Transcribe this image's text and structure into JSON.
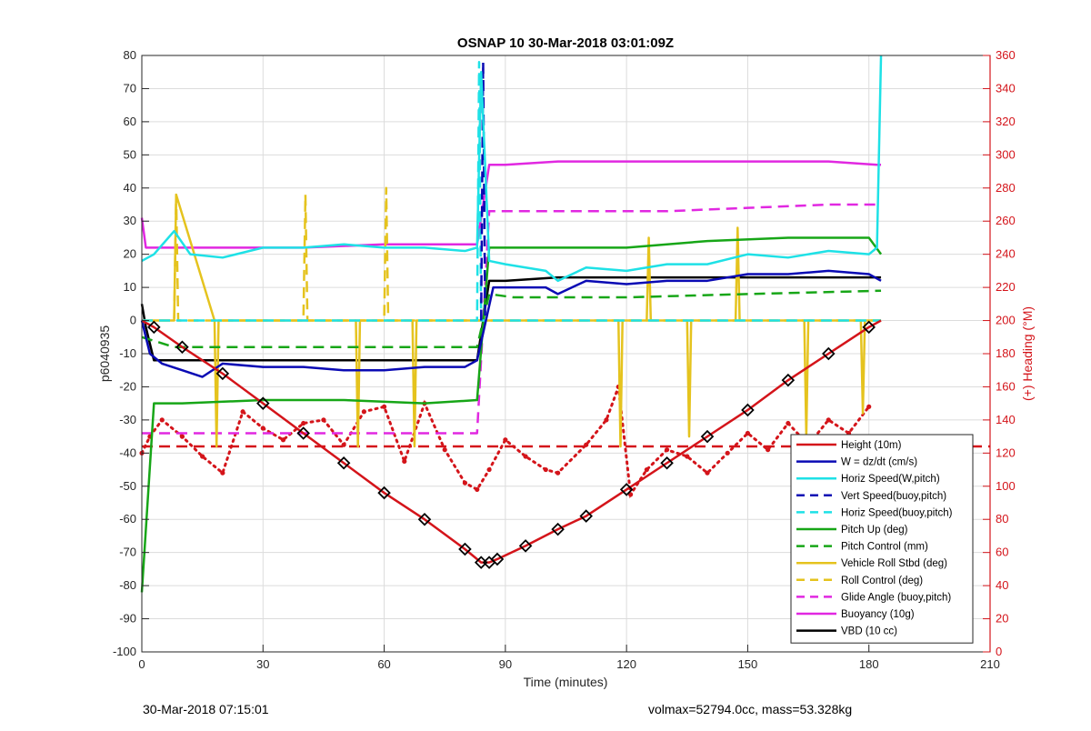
{
  "chart_data": {
    "type": "line",
    "title": "OSNAP 10 30-Mar-2018 03:01:09Z",
    "xlabel": "Time (minutes)",
    "ylabel_left": "p6040935",
    "ylabel_right": "(+) Heading (°M)",
    "xlim": [
      0,
      210
    ],
    "ylim_left": [
      -100,
      80
    ],
    "ylim_right": [
      0,
      360
    ],
    "x_ticks": [
      0,
      30,
      60,
      90,
      120,
      150,
      180,
      210
    ],
    "y_ticks_left": [
      -100,
      -90,
      -80,
      -70,
      -60,
      -50,
      -40,
      -30,
      -20,
      -10,
      0,
      10,
      20,
      30,
      40,
      50,
      60,
      70,
      80
    ],
    "y_ticks_right": [
      0,
      20,
      40,
      60,
      80,
      100,
      120,
      140,
      160,
      180,
      200,
      220,
      240,
      260,
      280,
      300,
      320,
      340,
      360
    ],
    "grid": true,
    "legend_position": "bottom-right",
    "right_axis_color": "#d4141a",
    "series": [
      {
        "name": "Height (10m)",
        "color": "#d4141a",
        "style": "solid",
        "x": [
          0,
          3,
          10,
          20,
          30,
          40,
          50,
          60,
          70,
          80,
          84,
          86,
          88,
          95,
          103,
          110,
          120,
          130,
          140,
          150,
          160,
          170,
          180,
          183
        ],
        "y": [
          0,
          -2,
          -8,
          -16,
          -25,
          -34,
          -43,
          -52,
          -60,
          -69,
          -73,
          -73,
          -72,
          -68,
          -63,
          -59,
          -51,
          -43,
          -35,
          -27,
          -18,
          -10,
          -2,
          0
        ]
      },
      {
        "name": "W = dz/dt (cm/s)",
        "color": "#0a0ab4",
        "style": "solid",
        "x": [
          0,
          2,
          5,
          10,
          15,
          20,
          30,
          40,
          50,
          60,
          70,
          80,
          83,
          87,
          90,
          100,
          103,
          110,
          120,
          130,
          140,
          150,
          160,
          170,
          180,
          183
        ],
        "y": [
          0,
          -10,
          -13,
          -15,
          -17,
          -13,
          -14,
          -14,
          -15,
          -15,
          -14,
          -14,
          -12,
          10,
          10,
          10,
          8,
          12,
          11,
          12,
          12,
          14,
          14,
          15,
          14,
          12
        ]
      },
      {
        "name": "Horiz Speed(W,pitch)",
        "color": "#1ee1e6",
        "style": "solid",
        "x": [
          0,
          3,
          8,
          12,
          20,
          30,
          40,
          50,
          60,
          70,
          80,
          83,
          84,
          86,
          90,
          100,
          103,
          110,
          120,
          130,
          140,
          150,
          160,
          170,
          180,
          182,
          183
        ],
        "y": [
          18,
          20,
          27,
          20,
          19,
          22,
          22,
          23,
          22,
          22,
          21,
          22,
          75,
          18,
          17,
          15,
          12,
          16,
          15,
          17,
          17,
          20,
          19,
          21,
          20,
          22,
          80
        ]
      },
      {
        "name": "Vert Speed(buoy,pitch)",
        "color": "#0a0ab4",
        "style": "dashed",
        "x": [
          84,
          84.5,
          85
        ],
        "y": [
          0,
          78,
          0
        ]
      },
      {
        "name": "Horiz Speed(buoy,pitch)",
        "color": "#1ee1e6",
        "style": "dashed",
        "x": [
          0,
          83,
          83.5,
          84,
          87,
          183
        ],
        "y": [
          0,
          0,
          78,
          0,
          0,
          0
        ]
      },
      {
        "name": "Pitch Up (deg)",
        "color": "#17a617",
        "style": "solid",
        "x": [
          0,
          3,
          10,
          30,
          50,
          70,
          83,
          86,
          90,
          100,
          120,
          140,
          160,
          180,
          183
        ],
        "y": [
          -82,
          -25,
          -25,
          -24,
          -24,
          -25,
          -24,
          22,
          22,
          22,
          22,
          24,
          25,
          25,
          20
        ]
      },
      {
        "name": "Pitch Control (mm)",
        "color": "#17a617",
        "style": "dashed",
        "x": [
          0,
          8,
          83,
          86,
          92,
          120,
          150,
          183
        ],
        "y": [
          -5,
          -8,
          -8,
          8,
          7,
          7,
          8,
          9
        ]
      },
      {
        "name": "Vehicle Roll Stbd (deg)",
        "color": "#e5c31e",
        "style": "solid",
        "x": [
          0,
          7,
          8,
          8.5,
          18,
          18.5,
          19,
          40,
          53,
          53.5,
          54,
          67,
          67.5,
          68,
          83,
          86,
          100,
          118,
          118.5,
          119,
          125,
          125.5,
          126,
          135,
          135.5,
          136,
          147,
          147.5,
          148,
          155,
          164,
          164.5,
          165,
          178,
          178.5,
          179,
          183
        ],
        "y": [
          0,
          0,
          0,
          38,
          0,
          -38,
          0,
          0,
          0,
          -38,
          0,
          0,
          -38,
          0,
          0,
          0,
          0,
          0,
          -38,
          0,
          0,
          25,
          0,
          0,
          -35,
          0,
          0,
          28,
          0,
          0,
          0,
          -35,
          0,
          0,
          -28,
          0,
          0
        ]
      },
      {
        "name": "Roll Control (deg)",
        "color": "#e5c31e",
        "style": "dashed",
        "x": [
          0,
          8,
          8.5,
          9,
          40,
          40.5,
          41,
          60,
          60.5,
          61,
          183
        ],
        "y": [
          0,
          0,
          38,
          0,
          0,
          38,
          0,
          0,
          40,
          0,
          0
        ]
      },
      {
        "name": "Glide Angle (buoy,pitch)",
        "color": "#e128e1",
        "style": "dashed",
        "x": [
          0,
          20,
          40,
          60,
          83,
          86,
          90,
          110,
          130,
          150,
          170,
          183
        ],
        "y": [
          -34,
          -34,
          -34,
          -34,
          -34,
          33,
          33,
          33,
          33,
          34,
          35,
          35
        ]
      },
      {
        "name": "Buoyancy (10g)",
        "color": "#e128e1",
        "style": "solid",
        "x": [
          0,
          1,
          20,
          40,
          60,
          83,
          86,
          90,
          103,
          120,
          150,
          170,
          182,
          183
        ],
        "y": [
          31,
          22,
          22,
          22,
          23,
          23,
          47,
          47,
          48,
          48,
          48,
          48,
          47,
          47
        ]
      },
      {
        "name": "VBD (10 cc)",
        "color": "#000000",
        "style": "solid",
        "x": [
          0,
          1,
          3,
          20,
          40,
          60,
          83,
          86,
          90,
          103,
          120,
          150,
          182,
          183
        ],
        "y": [
          5,
          -2,
          -12,
          -12,
          -12,
          -12,
          -12,
          12,
          12,
          13,
          13,
          13,
          13,
          13
        ]
      },
      {
        "name": "Heading",
        "axis": "right",
        "color": "#d4141a",
        "style": "dotted",
        "x": [
          0,
          2,
          5,
          10,
          15,
          20,
          25,
          30,
          35,
          40,
          45,
          50,
          55,
          60,
          65,
          70,
          75,
          80,
          83,
          86,
          90,
          95,
          100,
          103,
          110,
          115,
          118,
          121,
          125,
          130,
          135,
          140,
          145,
          150,
          155,
          160,
          165,
          170,
          175,
          180
        ],
        "y": [
          120,
          130,
          140,
          130,
          118,
          108,
          145,
          135,
          128,
          138,
          140,
          125,
          145,
          148,
          115,
          150,
          122,
          102,
          98,
          110,
          128,
          118,
          110,
          108,
          125,
          140,
          160,
          95,
          110,
          122,
          118,
          108,
          120,
          132,
          122,
          138,
          125,
          140,
          132,
          148
        ]
      }
    ],
    "reference_lines": [
      {
        "label": "Height (10m)",
        "color": "#d4141a",
        "style": "dashed",
        "y": -38
      }
    ]
  },
  "footer": {
    "left": "30-Mar-2018 07:15:01",
    "right": "volmax=52794.0cc, mass=53.328kg"
  }
}
